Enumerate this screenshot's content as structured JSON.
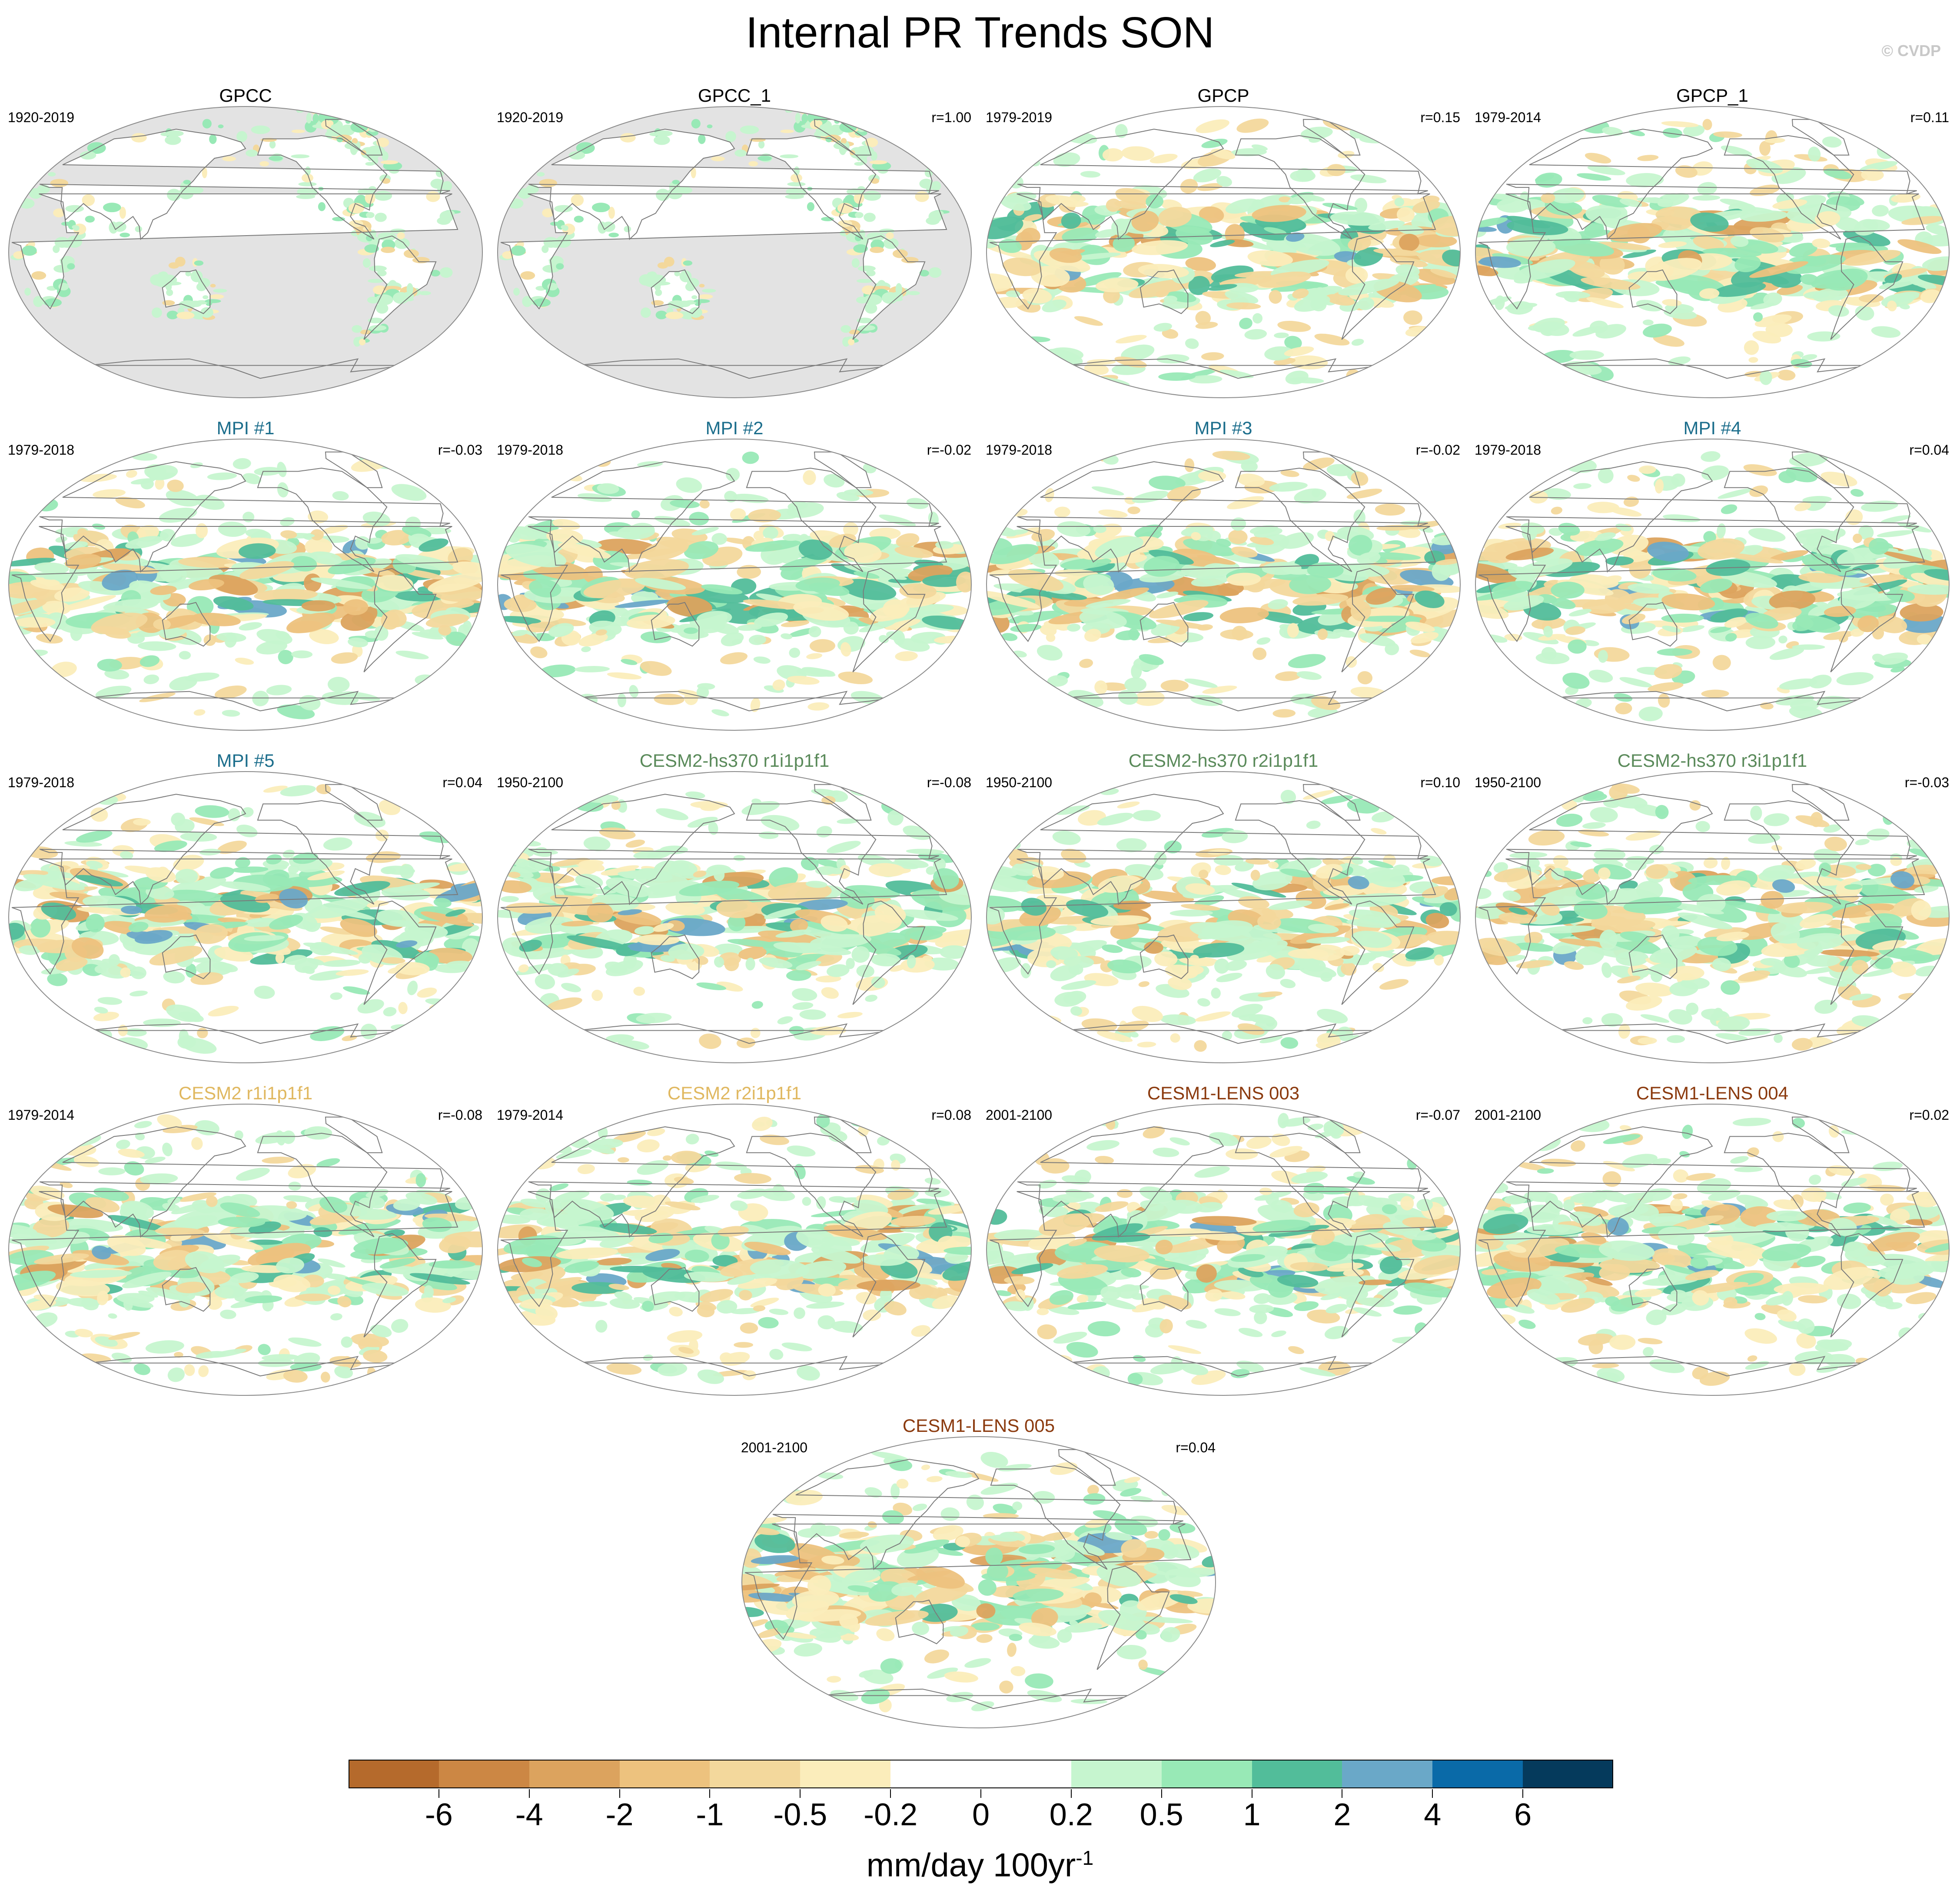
{
  "title": "Internal PR Trends SON",
  "watermark": "© CVDP",
  "panels": [
    {
      "title": "GPCC",
      "years": "1920-2019",
      "corr": "",
      "color": "#000000",
      "grey": true,
      "seed": 11
    },
    {
      "title": "GPCC_1",
      "years": "1920-2019",
      "corr": "r=1.00",
      "color": "#000000",
      "grey": true,
      "seed": 11
    },
    {
      "title": "GPCP",
      "years": "1979-2019",
      "corr": "r=0.15",
      "color": "#000000",
      "grey": false,
      "seed": 23
    },
    {
      "title": "GPCP_1",
      "years": "1979-2014",
      "corr": "r=0.11",
      "color": "#000000",
      "grey": false,
      "seed": 29
    },
    {
      "title": "MPI #1",
      "years": "1979-2018",
      "corr": "r=-0.03",
      "color": "#1c6e8c",
      "grey": false,
      "seed": 31
    },
    {
      "title": "MPI #2",
      "years": "1979-2018",
      "corr": "r=-0.02",
      "color": "#1c6e8c",
      "grey": false,
      "seed": 37
    },
    {
      "title": "MPI #3",
      "years": "1979-2018",
      "corr": "r=-0.02",
      "color": "#1c6e8c",
      "grey": false,
      "seed": 41
    },
    {
      "title": "MPI #4",
      "years": "1979-2018",
      "corr": "r=0.04",
      "color": "#1c6e8c",
      "grey": false,
      "seed": 43
    },
    {
      "title": "MPI #5",
      "years": "1979-2018",
      "corr": "r=0.04",
      "color": "#1c6e8c",
      "grey": false,
      "seed": 47
    },
    {
      "title": "CESM2-hs370 r1i1p1f1",
      "years": "1950-2100",
      "corr": "r=-0.08",
      "color": "#5a8a5a",
      "grey": false,
      "seed": 53
    },
    {
      "title": "CESM2-hs370 r2i1p1f1",
      "years": "1950-2100",
      "corr": "r=0.10",
      "color": "#5a8a5a",
      "grey": false,
      "seed": 59
    },
    {
      "title": "CESM2-hs370 r3i1p1f1",
      "years": "1950-2100",
      "corr": "r=-0.03",
      "color": "#5a8a5a",
      "grey": false,
      "seed": 61
    },
    {
      "title": "CESM2 r1i1p1f1",
      "years": "1979-2014",
      "corr": "r=-0.08",
      "color": "#e0b860",
      "grey": false,
      "seed": 67
    },
    {
      "title": "CESM2 r2i1p1f1",
      "years": "1979-2014",
      "corr": "r=0.08",
      "color": "#e0b860",
      "grey": false,
      "seed": 71
    },
    {
      "title": "CESM1-LENS 003",
      "years": "2001-2100",
      "corr": "r=-0.07",
      "color": "#8b3a0e",
      "grey": false,
      "seed": 73
    },
    {
      "title": "CESM1-LENS 004",
      "years": "2001-2100",
      "corr": "r=0.02",
      "color": "#8b3a0e",
      "grey": false,
      "seed": 79
    },
    {
      "title": "CESM1-LENS 005",
      "years": "2001-2100",
      "corr": "r=0.04",
      "color": "#8b3a0e",
      "grey": false,
      "seed": 83
    }
  ],
  "colorbar": {
    "colors": [
      "#b56a2c",
      "#cc8744",
      "#dca35e",
      "#edc27e",
      "#f3d89c",
      "#fbedbb",
      "#ffffff",
      "#ffffff",
      "#c6f5cf",
      "#98e9b6",
      "#52bd9a",
      "#6aa8c8",
      "#0a6aa8",
      "#053a5c"
    ],
    "labels": [
      "-6",
      "-4",
      "-2",
      "-1",
      "-0.5",
      "-0.2",
      "0",
      "0.2",
      "0.5",
      "1",
      "2",
      "4",
      "6"
    ],
    "units_main": "mm/day 100yr",
    "units_sup": "-1"
  }
}
